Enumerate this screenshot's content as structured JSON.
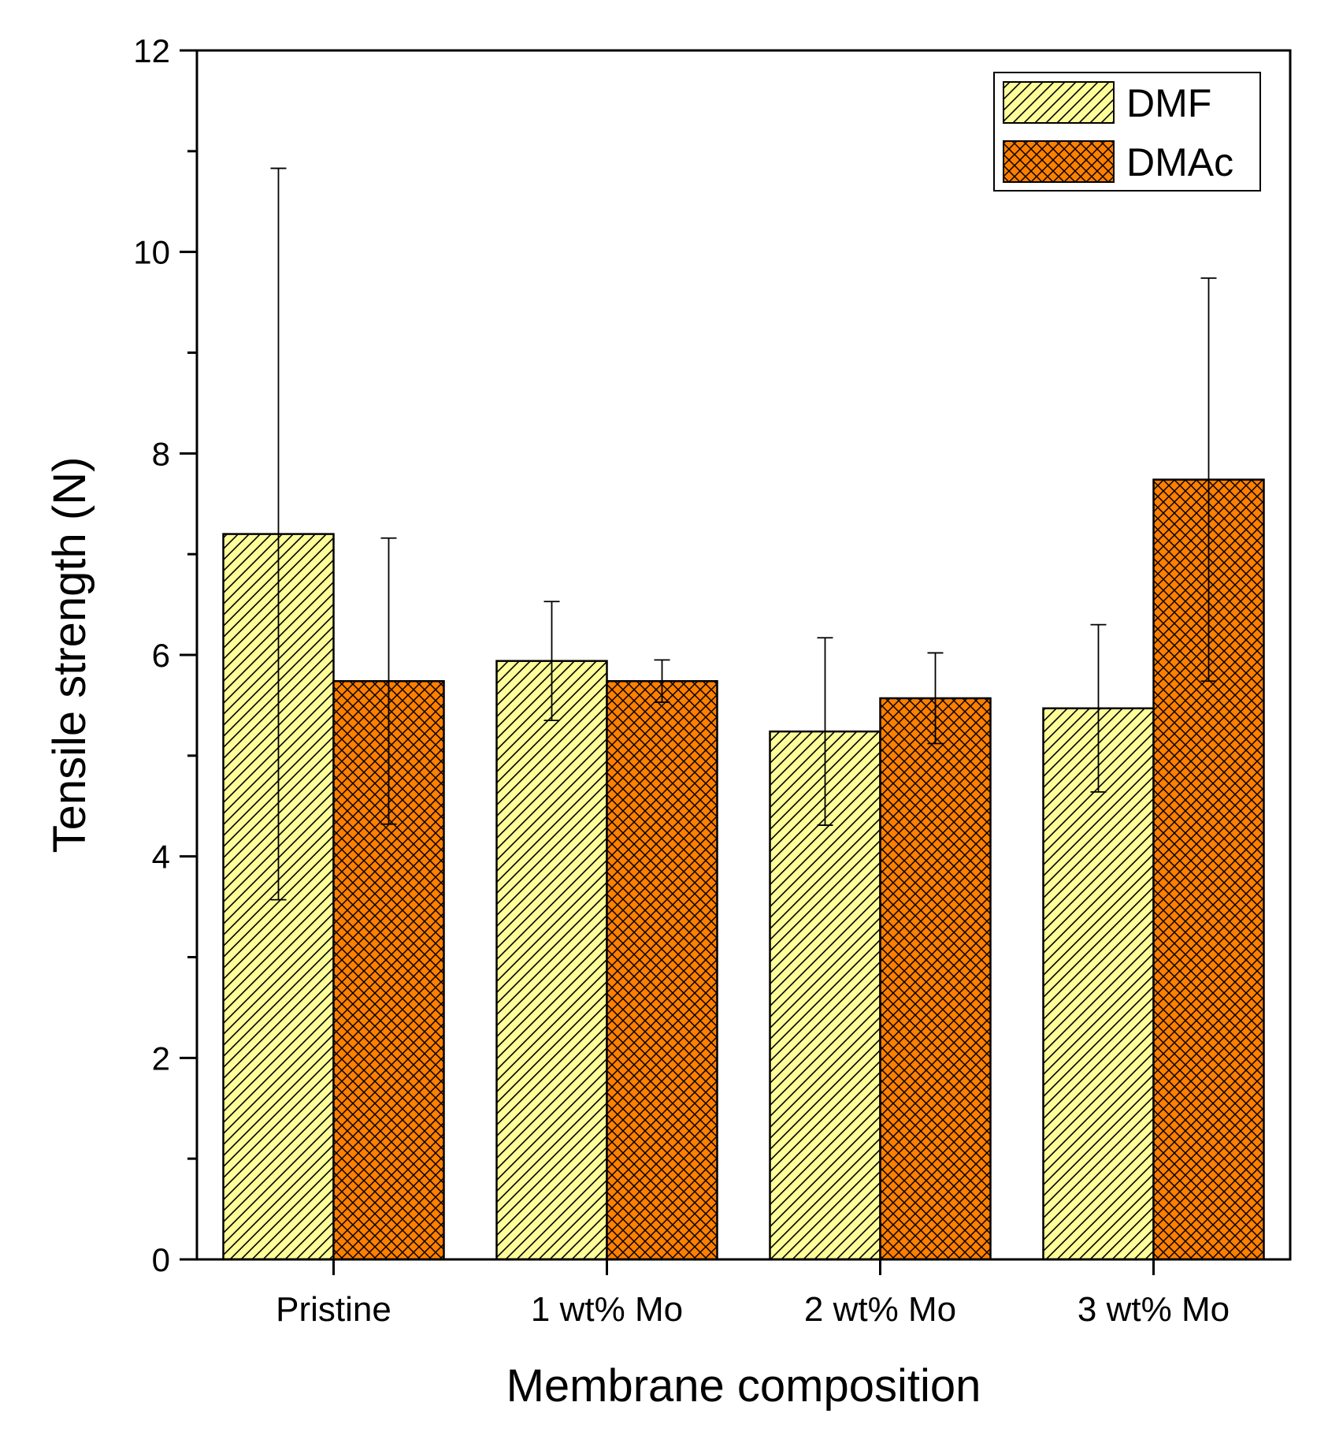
{
  "chart_data": {
    "type": "bar",
    "title": "",
    "xlabel": "Membrane composition",
    "ylabel": "Tensile strength (N)",
    "ylim": [
      0,
      12
    ],
    "yticks": [
      0,
      2,
      4,
      6,
      8,
      10,
      12
    ],
    "yticks_minor": [
      1,
      3,
      5,
      7,
      9,
      11
    ],
    "categories": [
      "Pristine",
      "1 wt% Mo",
      "2 wt% Mo",
      "3 wt% Mo"
    ],
    "series": [
      {
        "name": "DMF",
        "values": [
          7.2,
          5.94,
          5.24,
          5.47
        ],
        "errors": [
          3.63,
          0.59,
          0.93,
          0.83
        ],
        "color": "#ffff99",
        "hatch": "diagonal"
      },
      {
        "name": "DMAc",
        "values": [
          5.74,
          5.74,
          5.57,
          7.74
        ],
        "errors": [
          1.42,
          0.21,
          0.45,
          2.0
        ],
        "color": "#ff7f00",
        "hatch": "crosshatch"
      }
    ],
    "legend": "top-right",
    "grid": false
  }
}
